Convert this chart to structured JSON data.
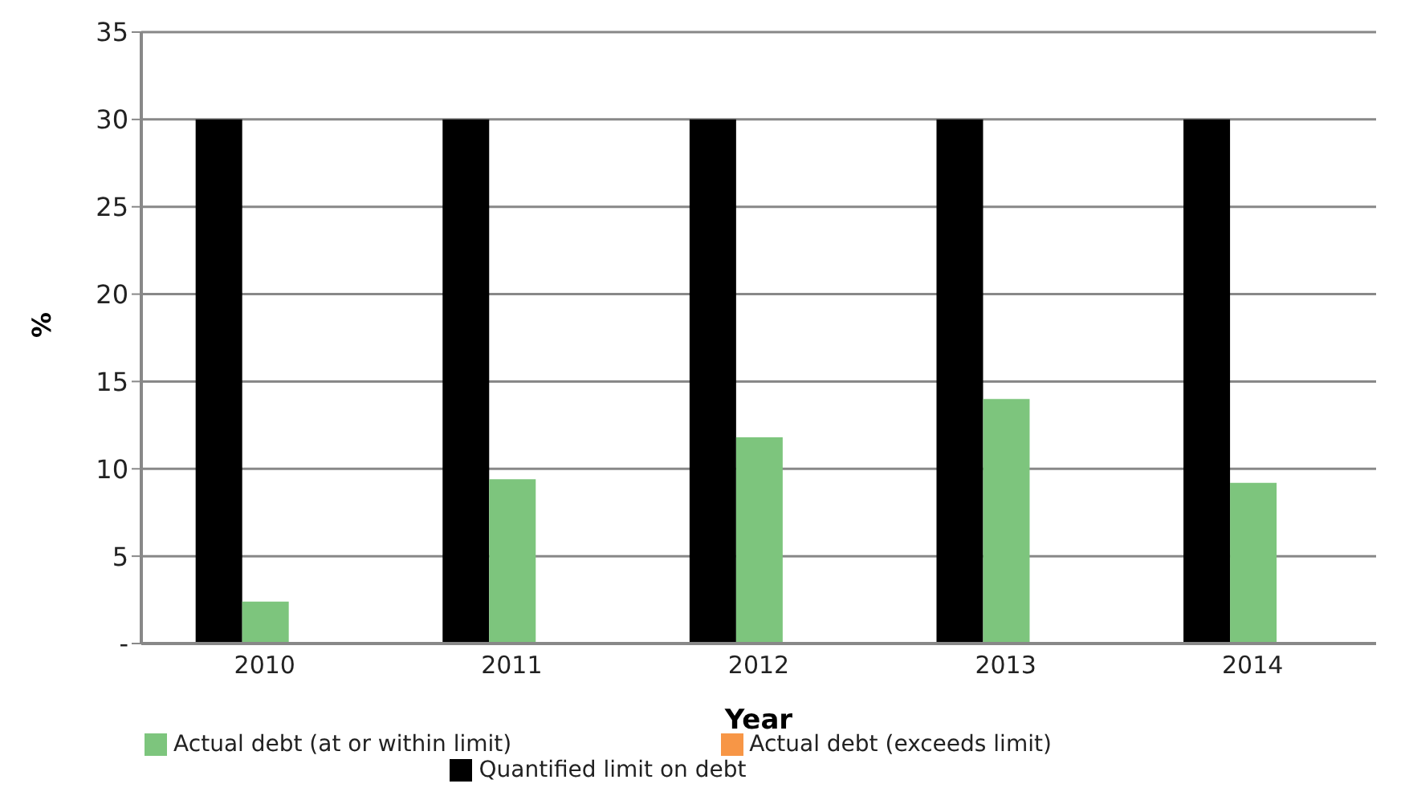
{
  "chart_data": {
    "type": "bar",
    "xlabel": "Year",
    "ylabel": "%",
    "categories": [
      "2010",
      "2011",
      "2012",
      "2013",
      "2014"
    ],
    "series": [
      {
        "name": "Quantified limit on debt",
        "color": "#000000",
        "values": [
          30,
          30,
          30,
          30,
          30
        ]
      },
      {
        "name": "Actual debt (at or within limit)",
        "color": "#7dc57d",
        "values": [
          2.4,
          9.4,
          11.8,
          14.0,
          9.2
        ]
      },
      {
        "name": "Actual debt (exceeds limit)",
        "color": "#f79646",
        "values": [
          null,
          null,
          null,
          null,
          null
        ]
      }
    ],
    "ylim": [
      0,
      35
    ],
    "yticks": [
      {
        "value": 0,
        "label": "-"
      },
      5,
      10,
      15,
      20,
      25,
      30,
      35
    ],
    "grid": "y",
    "legend": "bottom"
  }
}
